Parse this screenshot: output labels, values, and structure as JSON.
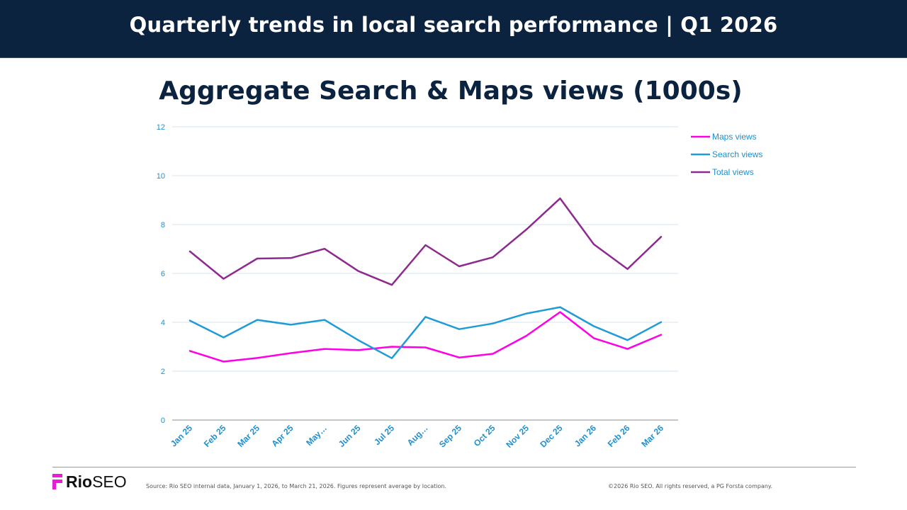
{
  "header": {
    "title": "Quarterly trends in local search performance | Q1 2026"
  },
  "footer": {
    "logo_primary": "Rio",
    "logo_secondary": "SEO",
    "source": "Source: Rio SEO internal data, January 1, 2026, to March 21, 2026. Figures represent average by location.",
    "copyright": "©2026 Rio SEO. All rights reserved, a PG Forsta company."
  },
  "chart_data": {
    "type": "line",
    "title": "Aggregate Search & Maps views (1000s)",
    "categories": [
      "Jan 25",
      "Feb 25",
      "Mar 25",
      "Apr 25",
      "May…",
      "Jun 25",
      "Jul 25",
      "Aug…",
      "Sep 25",
      "Oct 25",
      "Nov 25",
      "Dec 25",
      "Jan 26",
      "Feb 26",
      "Mar 26"
    ],
    "ylim": [
      0,
      12
    ],
    "yticks": [
      "0",
      "2",
      "4",
      "6",
      "8",
      "10",
      "12"
    ],
    "grid": true,
    "legend_position": "top-right",
    "series": [
      {
        "name": "Maps views",
        "color": "#ff00e6",
        "values": [
          2.83,
          2.39,
          2.54,
          2.74,
          2.91,
          2.86,
          3.0,
          2.97,
          2.56,
          2.71,
          3.45,
          4.42,
          3.35,
          2.91,
          3.49
        ]
      },
      {
        "name": "Search views",
        "color": "#1f9bd6",
        "values": [
          4.07,
          3.38,
          4.1,
          3.9,
          4.1,
          3.27,
          2.53,
          4.22,
          3.72,
          3.95,
          4.36,
          4.62,
          3.84,
          3.27,
          4.01
        ]
      },
      {
        "name": "Total views",
        "color": "#8e2a8e",
        "values": [
          6.9,
          5.78,
          6.61,
          6.63,
          7.01,
          6.1,
          5.53,
          7.16,
          6.29,
          6.66,
          7.8,
          9.07,
          7.19,
          6.18,
          7.5
        ]
      }
    ],
    "colors": {
      "axis_text": "#1f8fd0",
      "gridline": "#d5e6f2",
      "axis_line": "#8c8c8c"
    }
  }
}
